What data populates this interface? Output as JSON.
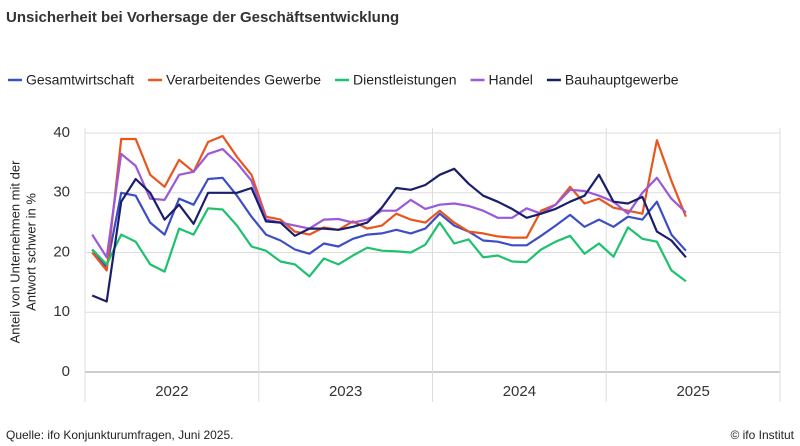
{
  "chart_data": {
    "type": "line",
    "title": "Unsicherheit bei Vorhersage der Geschäftsentwicklung",
    "y_label": [
      "Anteil von Unternehmen mit der",
      "Antwort schwer in %"
    ],
    "source": "Quelle: ifo Konjunkturumfragen, Juni 2025.",
    "credit": "© ifo Institut",
    "categories": [
      null,
      null,
      null,
      null,
      null,
      null,
      null,
      null,
      null,
      null,
      null,
      null,
      null,
      null,
      null,
      null,
      null,
      null,
      null,
      null,
      null,
      null,
      null,
      null,
      null,
      null,
      null,
      null,
      null,
      null,
      null,
      null,
      null,
      null,
      null,
      null,
      null,
      null,
      null,
      null,
      null,
      null
    ],
    "x_labels": [
      "2022",
      "2023",
      "2024",
      "2025"
    ],
    "ylim": [
      0,
      40
    ],
    "yticks": [
      0,
      10,
      20,
      30,
      40
    ],
    "grid": true,
    "legend": "top",
    "series": [
      {
        "name": "Gesamtwirtschaft",
        "color": "#3d4ec4",
        "values": [
          20.5,
          17.5,
          30,
          29.5,
          25,
          23,
          29,
          28,
          32.3,
          32.5,
          29.5,
          26,
          23,
          22,
          20.5,
          19.8,
          21.5,
          21,
          22.3,
          23,
          23.2,
          23.8,
          23.2,
          24,
          26.5,
          24.5,
          23.5,
          22,
          21.8,
          21.2,
          21.2,
          22.8,
          24.5,
          26.3,
          24.3,
          25.5,
          24.3,
          26,
          25.5,
          28.5,
          23,
          20.3
        ]
      },
      {
        "name": "Verarbeitendes Gewerbe",
        "color": "#e8561e",
        "values": [
          20,
          17,
          39,
          39,
          33,
          31,
          35.5,
          33.5,
          38.5,
          39.5,
          36,
          33,
          26,
          25.5,
          23.5,
          23,
          24.2,
          23.8,
          25.2,
          24,
          24.5,
          26.5,
          25.5,
          25,
          27,
          25,
          23.5,
          23.2,
          22.7,
          22.5,
          22.5,
          27,
          28,
          31,
          28.2,
          29,
          27.5,
          27,
          26.5,
          38.8,
          32,
          26
        ]
      },
      {
        "name": "Dienstleistungen",
        "color": "#1ec26e",
        "values": [
          20.5,
          18,
          23,
          21.8,
          18,
          16.8,
          24,
          23,
          27.4,
          27.2,
          24.5,
          21,
          20.3,
          18.5,
          18,
          16,
          19,
          18,
          19.5,
          20.8,
          20.3,
          20.2,
          20,
          21.3,
          25,
          21.5,
          22.2,
          19.2,
          19.5,
          18.5,
          18.4,
          20.5,
          21.8,
          22.8,
          19.8,
          21.5,
          19.3,
          24.2,
          22.3,
          21.8,
          17,
          15.2
        ]
      },
      {
        "name": "Handel",
        "color": "#9b59d9",
        "values": [
          23,
          19.2,
          36.5,
          34.5,
          29,
          28.8,
          33,
          33.5,
          36.5,
          37.3,
          35,
          32,
          25.5,
          25,
          24.5,
          24,
          25.5,
          25.6,
          25,
          25.5,
          27,
          27,
          28.8,
          27.3,
          28,
          28.2,
          27.8,
          27,
          25.8,
          25.8,
          27.4,
          26.5,
          28,
          30.5,
          30.3,
          29.5,
          28.5,
          26.5,
          30,
          32.5,
          29,
          26.7
        ]
      },
      {
        "name": "Bauhauptgewerbe",
        "color": "#1a1f6b",
        "values": [
          12.8,
          11.8,
          28.5,
          32.3,
          30,
          25.5,
          28,
          24.8,
          30,
          30,
          30,
          30.8,
          25.2,
          25,
          22.8,
          24,
          24,
          23.8,
          24.3,
          25,
          27.5,
          30.8,
          30.5,
          31.3,
          33,
          34,
          31.5,
          29.5,
          28.5,
          27.3,
          25.8,
          26.5,
          27.3,
          28.5,
          29.5,
          33,
          28.5,
          28.2,
          29.3,
          23.5,
          22,
          19.2
        ]
      }
    ]
  }
}
